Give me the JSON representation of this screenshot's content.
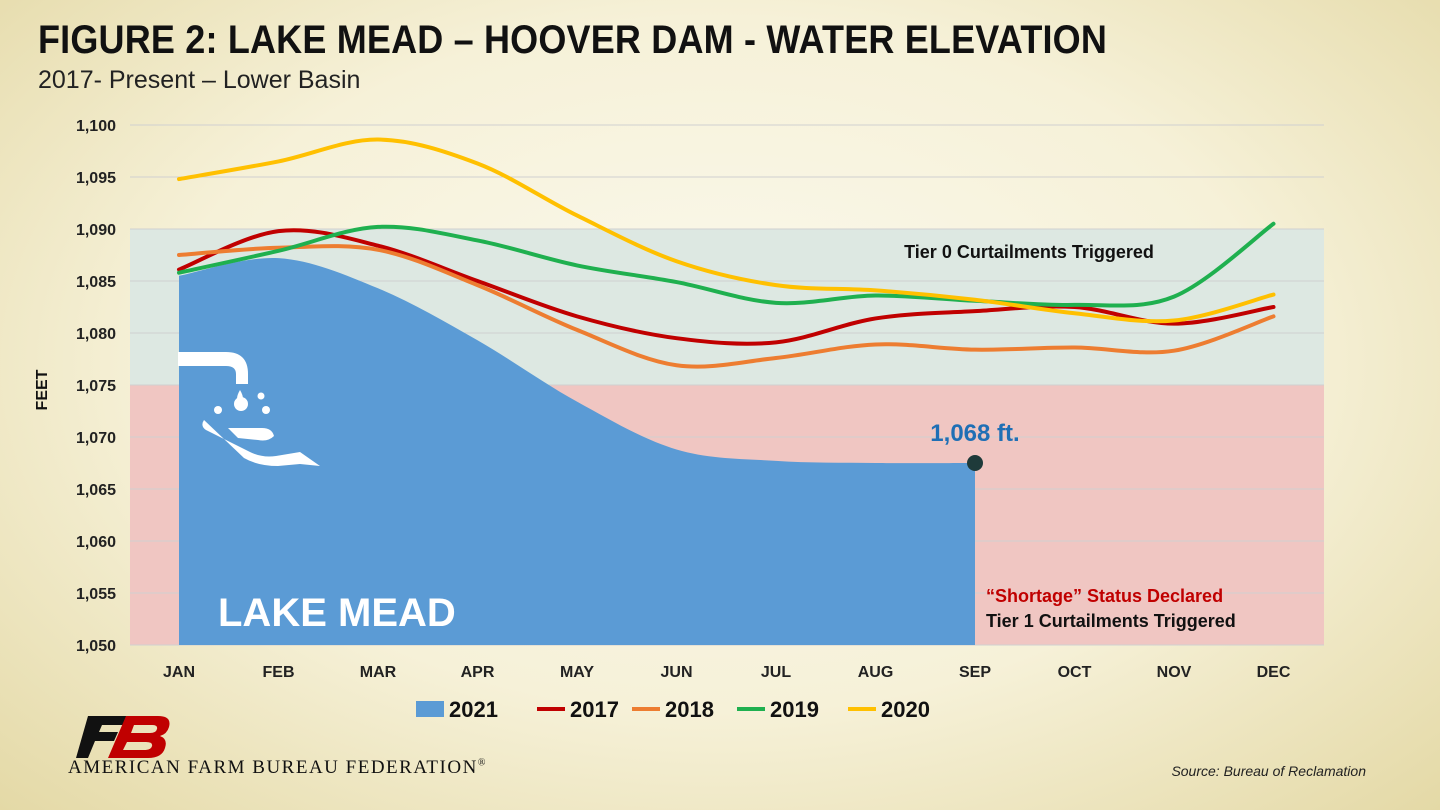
{
  "header": {
    "title": "FIGURE 2: LAKE MEAD – HOOVER DAM - WATER ELEVATION",
    "subtitle": "2017- Present – Lower Basin"
  },
  "chart_data": {
    "type": "line",
    "ylabel": "FEET",
    "xlabel": "",
    "ylim": [
      1050,
      1100
    ],
    "y_ticks": [
      1050,
      1055,
      1060,
      1065,
      1070,
      1075,
      1080,
      1085,
      1090,
      1095,
      1100
    ],
    "y_tick_labels": [
      "1,050",
      "1,055",
      "1,060",
      "1,065",
      "1,070",
      "1,075",
      "1,080",
      "1,085",
      "1,090",
      "1,095",
      "1,100"
    ],
    "categories": [
      "JAN",
      "FEB",
      "MAR",
      "APR",
      "MAY",
      "JUN",
      "JUL",
      "AUG",
      "SEP",
      "OCT",
      "NOV",
      "DEC"
    ],
    "grid": true,
    "legend_position": "bottom",
    "zones": [
      {
        "from": 1075,
        "to": 1090,
        "color": "#dde8e2",
        "label": "Tier 0 Curtailments Triggered",
        "label_color": "#111111"
      },
      {
        "from": 1050,
        "to": 1075,
        "color": "#f0c6c2",
        "label_lines": [
          {
            "text": "“Shortage” Status Declared",
            "color": "#c00000"
          },
          {
            "text": "Tier 1 Curtailments Triggered",
            "color": "#111111"
          }
        ]
      }
    ],
    "series": [
      {
        "name": "2021",
        "style": "area",
        "color": "#5b9bd5",
        "values": [
          1085.5,
          1087.2,
          1084.3,
          1079.3,
          1073.4,
          1068.8,
          1067.7,
          1067.5,
          1067.5,
          null,
          null,
          null
        ]
      },
      {
        "name": "2017",
        "style": "line",
        "color": "#c00000",
        "values": [
          1086.1,
          1089.8,
          1088.4,
          1085.0,
          1081.6,
          1079.5,
          1079.1,
          1081.4,
          1082.1,
          1082.5,
          1080.9,
          1082.5
        ]
      },
      {
        "name": "2018",
        "style": "line",
        "color": "#ed7d31",
        "values": [
          1087.5,
          1088.2,
          1088.0,
          1084.6,
          1080.3,
          1076.9,
          1077.6,
          1078.9,
          1078.4,
          1078.6,
          1078.3,
          1081.6
        ]
      },
      {
        "name": "2019",
        "style": "line",
        "color": "#1fb04f",
        "values": [
          1085.8,
          1087.9,
          1090.2,
          1088.9,
          1086.5,
          1084.9,
          1082.9,
          1083.6,
          1083.1,
          1082.7,
          1083.5,
          1090.5
        ]
      },
      {
        "name": "2020",
        "style": "line",
        "color": "#ffc000",
        "values": [
          1094.8,
          1096.5,
          1098.6,
          1096.3,
          1091.3,
          1086.9,
          1084.6,
          1084.1,
          1083.2,
          1081.9,
          1081.2,
          1083.7
        ]
      }
    ],
    "annotations": {
      "endpoint_label": "1,068 ft.",
      "endpoint_color": "#1f6fb5",
      "area_label": "LAKE MEAD"
    }
  },
  "footer": {
    "org_name": "AMERICAN FARM BUREAU FEDERATION",
    "org_mark": "®",
    "source": "Source: Bureau of Reclamation"
  },
  "icons": [
    "faucet-hand-icon",
    "farm-bureau-logo"
  ]
}
